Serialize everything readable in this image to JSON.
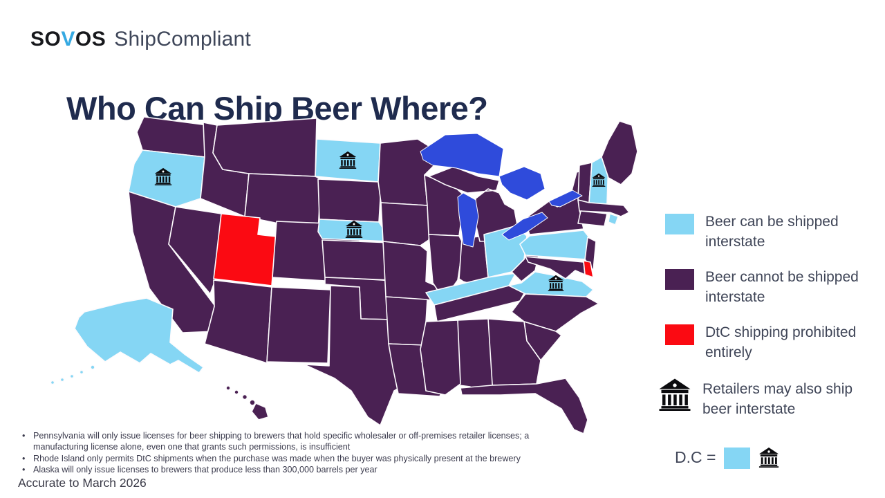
{
  "brand": {
    "logo_so": "SO",
    "logo_v": "V",
    "logo_os": "OS",
    "logo_suffix": "ShipCompliant"
  },
  "title": "Who Can Ship Beer Where?",
  "legend": {
    "items": [
      {
        "label": "Beer can be shipped interstate",
        "status": "can-ship",
        "color": "#85D6F4"
      },
      {
        "label": "Beer cannot be shipped interstate",
        "status": "cannot-ship",
        "color": "#4A2153"
      },
      {
        "label": "DtC shipping prohibited entirely",
        "status": "prohibited",
        "color": "#FB0A12"
      },
      {
        "label": "Retailers may also ship beer interstate",
        "status": "retailers",
        "icon": "bank-icon"
      }
    ],
    "dc": {
      "label": "D.C =",
      "status": "can-ship",
      "color": "#85D6F4",
      "retailers": true
    }
  },
  "map": {
    "status_colors": {
      "can-ship": "#85D6F4",
      "cannot-ship": "#4A2153",
      "prohibited": "#FB0A12"
    },
    "water_color": "#2F4BDB",
    "border_color": "#FDFBFD",
    "states": [
      {
        "id": "AL",
        "name": "Alabama",
        "status": "cannot-ship",
        "retailers": false
      },
      {
        "id": "AK",
        "name": "Alaska",
        "status": "can-ship",
        "retailers": false
      },
      {
        "id": "AZ",
        "name": "Arizona",
        "status": "cannot-ship",
        "retailers": false
      },
      {
        "id": "AR",
        "name": "Arkansas",
        "status": "cannot-ship",
        "retailers": false
      },
      {
        "id": "CA",
        "name": "California",
        "status": "cannot-ship",
        "retailers": false
      },
      {
        "id": "CO",
        "name": "Colorado",
        "status": "cannot-ship",
        "retailers": false
      },
      {
        "id": "CT",
        "name": "Connecticut",
        "status": "cannot-ship",
        "retailers": false
      },
      {
        "id": "DE",
        "name": "Delaware",
        "status": "prohibited",
        "retailers": false
      },
      {
        "id": "FL",
        "name": "Florida",
        "status": "cannot-ship",
        "retailers": false
      },
      {
        "id": "GA",
        "name": "Georgia",
        "status": "cannot-ship",
        "retailers": false
      },
      {
        "id": "HI",
        "name": "Hawaii",
        "status": "cannot-ship",
        "retailers": false
      },
      {
        "id": "ID",
        "name": "Idaho",
        "status": "cannot-ship",
        "retailers": false
      },
      {
        "id": "IL",
        "name": "Illinois",
        "status": "cannot-ship",
        "retailers": false
      },
      {
        "id": "IN",
        "name": "Indiana",
        "status": "cannot-ship",
        "retailers": false
      },
      {
        "id": "IA",
        "name": "Iowa",
        "status": "cannot-ship",
        "retailers": false
      },
      {
        "id": "KS",
        "name": "Kansas",
        "status": "cannot-ship",
        "retailers": false
      },
      {
        "id": "KY",
        "name": "Kentucky",
        "status": "can-ship",
        "retailers": false
      },
      {
        "id": "LA",
        "name": "Louisiana",
        "status": "cannot-ship",
        "retailers": false
      },
      {
        "id": "ME",
        "name": "Maine",
        "status": "cannot-ship",
        "retailers": false
      },
      {
        "id": "MD",
        "name": "Maryland",
        "status": "cannot-ship",
        "retailers": false
      },
      {
        "id": "MA",
        "name": "Massachusetts",
        "status": "cannot-ship",
        "retailers": false
      },
      {
        "id": "MI",
        "name": "Michigan",
        "status": "cannot-ship",
        "retailers": false
      },
      {
        "id": "MN",
        "name": "Minnesota",
        "status": "cannot-ship",
        "retailers": false
      },
      {
        "id": "MS",
        "name": "Mississippi",
        "status": "cannot-ship",
        "retailers": false
      },
      {
        "id": "MO",
        "name": "Missouri",
        "status": "cannot-ship",
        "retailers": false
      },
      {
        "id": "MT",
        "name": "Montana",
        "status": "cannot-ship",
        "retailers": false
      },
      {
        "id": "NE",
        "name": "Nebraska",
        "status": "can-ship",
        "retailers": true
      },
      {
        "id": "NV",
        "name": "Nevada",
        "status": "cannot-ship",
        "retailers": false
      },
      {
        "id": "NH",
        "name": "New Hampshire",
        "status": "can-ship",
        "retailers": true
      },
      {
        "id": "NJ",
        "name": "New Jersey",
        "status": "cannot-ship",
        "retailers": false
      },
      {
        "id": "NM",
        "name": "New Mexico",
        "status": "cannot-ship",
        "retailers": false
      },
      {
        "id": "NY",
        "name": "New York",
        "status": "cannot-ship",
        "retailers": false
      },
      {
        "id": "NC",
        "name": "North Carolina",
        "status": "cannot-ship",
        "retailers": false
      },
      {
        "id": "ND",
        "name": "North Dakota",
        "status": "can-ship",
        "retailers": true
      },
      {
        "id": "OH",
        "name": "Ohio",
        "status": "can-ship",
        "retailers": false
      },
      {
        "id": "OK",
        "name": "Oklahoma",
        "status": "cannot-ship",
        "retailers": false
      },
      {
        "id": "OR",
        "name": "Oregon",
        "status": "can-ship",
        "retailers": true
      },
      {
        "id": "PA",
        "name": "Pennsylvania",
        "status": "can-ship",
        "retailers": false
      },
      {
        "id": "RI",
        "name": "Rhode Island",
        "status": "can-ship",
        "retailers": false
      },
      {
        "id": "SC",
        "name": "South Carolina",
        "status": "cannot-ship",
        "retailers": false
      },
      {
        "id": "SD",
        "name": "South Dakota",
        "status": "cannot-ship",
        "retailers": false
      },
      {
        "id": "TN",
        "name": "Tennessee",
        "status": "cannot-ship",
        "retailers": false
      },
      {
        "id": "TX",
        "name": "Texas",
        "status": "cannot-ship",
        "retailers": false
      },
      {
        "id": "UT",
        "name": "Utah",
        "status": "prohibited",
        "retailers": false
      },
      {
        "id": "VT",
        "name": "Vermont",
        "status": "cannot-ship",
        "retailers": false
      },
      {
        "id": "VA",
        "name": "Virginia",
        "status": "can-ship",
        "retailers": true
      },
      {
        "id": "WA",
        "name": "Washington",
        "status": "cannot-ship",
        "retailers": false
      },
      {
        "id": "WV",
        "name": "West Virginia",
        "status": "cannot-ship",
        "retailers": false
      },
      {
        "id": "WI",
        "name": "Wisconsin",
        "status": "cannot-ship",
        "retailers": false
      },
      {
        "id": "WY",
        "name": "Wyoming",
        "status": "cannot-ship",
        "retailers": false
      }
    ]
  },
  "footnotes": [
    "Pennsylvania will only issue licenses for beer shipping to brewers that hold specific wholesaler or off-premises retailer licenses; a manufacturing license alone, even one that grants such permissions, is insufficient",
    "Rhode Island only permits DtC shipments when the purchase was made when the buyer was physically present at the brewery",
    "Alaska will only issue licenses to brewers that produce less than 300,000 barrels per year"
  ],
  "accuracy_note": "Accurate to March 2026"
}
